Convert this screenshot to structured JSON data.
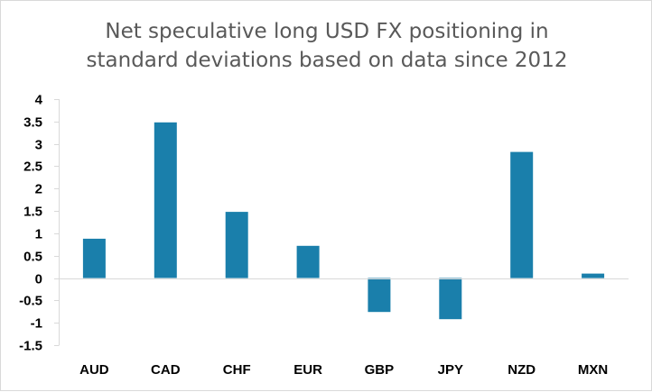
{
  "chart_data": {
    "type": "bar",
    "title_lines": [
      "Net speculative long USD FX positioning in",
      "standard deviations based on data since 2012"
    ],
    "categories": [
      "AUD",
      "CAD",
      "CHF",
      "EUR",
      "GBP",
      "JPY",
      "NZD",
      "MXN"
    ],
    "values": [
      0.88,
      3.48,
      1.48,
      0.72,
      -0.76,
      -0.92,
      2.82,
      0.1
    ],
    "ylim": [
      -1.5,
      4
    ],
    "yticks": [
      4,
      3.5,
      3,
      2.5,
      2,
      1.5,
      1,
      0.5,
      0,
      -0.5,
      -1,
      -1.5
    ],
    "ytick_labels": [
      "4",
      "3.5",
      "3",
      "2.5",
      "2",
      "1.5",
      "1",
      "0.5",
      "0",
      "-0.5",
      "-1",
      "-1.5"
    ],
    "bar_color": "#1a7fab",
    "grid": false,
    "legend": "none"
  }
}
